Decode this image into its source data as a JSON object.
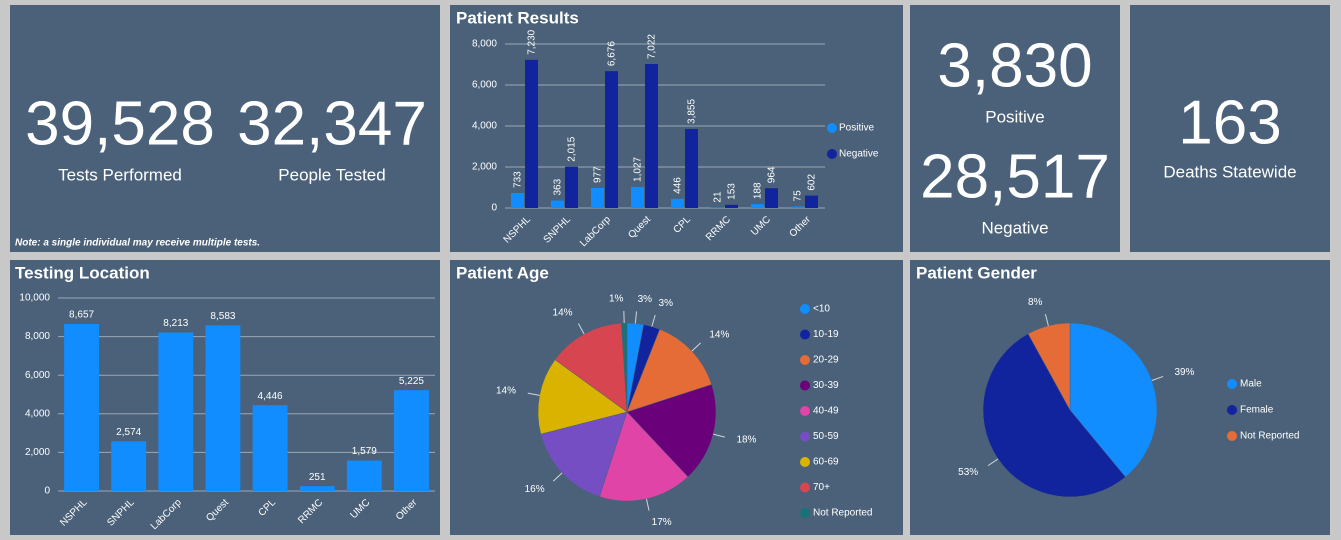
{
  "kpis": {
    "tests": {
      "value": "39,528",
      "label": "Tests Performed"
    },
    "people": {
      "value": "32,347",
      "label": "People Tested"
    },
    "note": "Note: a single individual may receive multiple tests.",
    "positive": {
      "value": "3,830",
      "label": "Positive"
    },
    "negative": {
      "value": "28,517",
      "label": "Negative"
    },
    "deaths": {
      "value": "163",
      "label": "Deaths Statewide"
    }
  },
  "chart_data": [
    {
      "type": "bar",
      "title": "Patient Results",
      "categories": [
        "NSPHL",
        "SNPHL",
        "LabCorp",
        "Quest",
        "CPL",
        "RRMC",
        "UMC",
        "Other"
      ],
      "series": [
        {
          "name": "Positive",
          "color": "#118dff",
          "values": [
            733,
            363,
            977,
            1027,
            446,
            21,
            188,
            75
          ],
          "value_labels": [
            "733",
            "363",
            "977",
            "1,027",
            "446",
            "21",
            "188",
            "75"
          ]
        },
        {
          "name": "Negative",
          "color": "#12239e",
          "values": [
            7230,
            2015,
            6676,
            7022,
            3855,
            153,
            964,
            602
          ],
          "value_labels": [
            "7,230",
            "2,015",
            "6,676",
            "7,022",
            "3,855",
            "153",
            "964",
            "602"
          ]
        }
      ],
      "ylim": [
        0,
        8000
      ],
      "yticks": [
        0,
        {
          "value": 2000,
          "label": "2,000"
        },
        {
          "value": 4000,
          "label": "4,000"
        },
        {
          "value": 6000,
          "label": "6,000"
        },
        {
          "value": 8000,
          "label": "8,000"
        }
      ],
      "grid": true,
      "legend": "right"
    },
    {
      "type": "bar",
      "title": "Testing Location",
      "categories": [
        "NSPHL",
        "SNPHL",
        "LabCorp",
        "Quest",
        "CPL",
        "RRMC",
        "UMC",
        "Other"
      ],
      "values": [
        8657,
        2574,
        8213,
        8583,
        4446,
        251,
        1579,
        5225
      ],
      "value_labels": [
        "8,657",
        "2,574",
        "8,213",
        "8,583",
        "4,446",
        "251",
        "1,579",
        "5,225"
      ],
      "color": "#118dff",
      "ylim": [
        0,
        10000
      ],
      "yticks": [
        0,
        {
          "value": 2000,
          "label": "2,000"
        },
        {
          "value": 4000,
          "label": "4,000"
        },
        {
          "value": 6000,
          "label": "6,000"
        },
        {
          "value": 8000,
          "label": "8,000"
        },
        {
          "value": 10000,
          "label": "10,000"
        }
      ],
      "grid": true
    },
    {
      "type": "pie",
      "title": "Patient Age",
      "categories": [
        "<10",
        "10-19",
        "20-29",
        "30-39",
        "40-49",
        "50-59",
        "60-69",
        "70+",
        "Not Reported"
      ],
      "values": [
        3,
        3,
        14,
        18,
        17,
        16,
        14,
        14,
        1
      ],
      "value_labels": [
        "3%",
        "3%",
        "14%",
        "18%",
        "17%",
        "16%",
        "14%",
        "14%",
        "1%"
      ],
      "colors": [
        "#118dff",
        "#12239e",
        "#e66c37",
        "#6b007b",
        "#e044a7",
        "#744ec2",
        "#d9b300",
        "#d64550",
        "#197278"
      ],
      "legend": "right"
    },
    {
      "type": "pie",
      "title": "Patient Gender",
      "categories": [
        "Male",
        "Female",
        "Not Reported"
      ],
      "values": [
        39,
        53,
        8
      ],
      "value_labels": [
        "39%",
        "53%",
        "8%"
      ],
      "colors": [
        "#118dff",
        "#12239e",
        "#e66c37"
      ],
      "legend": "right"
    }
  ]
}
